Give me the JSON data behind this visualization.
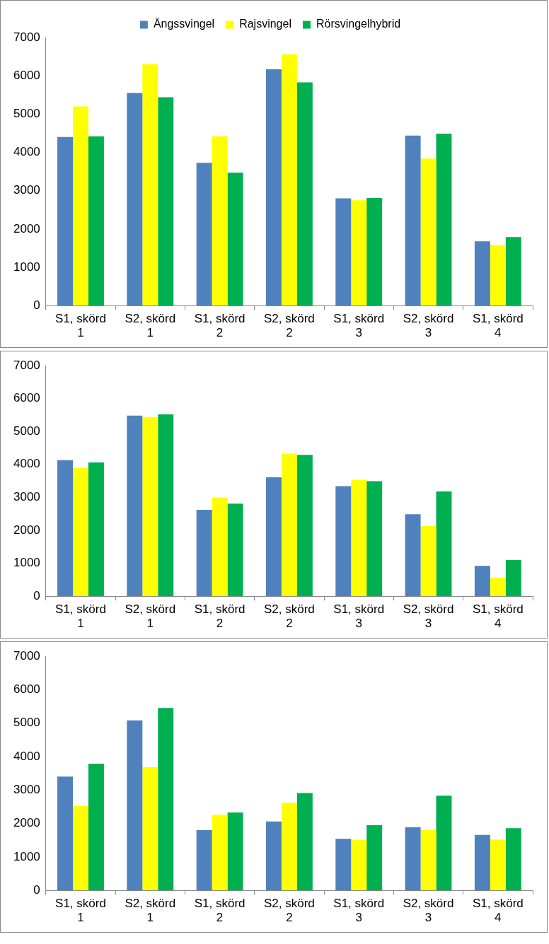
{
  "chart_data": [
    {
      "type": "bar",
      "legend": "top",
      "grid": false,
      "categories": [
        "S1, skörd 1",
        "S2, skörd 1",
        "S1, skörd 2",
        "S2, skörd 2",
        "S1, skörd 3",
        "S2, skörd 3",
        "S1, skörd 4"
      ],
      "ylim": [
        0,
        7000
      ],
      "yticks": [
        0,
        1000,
        2000,
        3000,
        4000,
        5000,
        6000,
        7000
      ],
      "series": [
        {
          "name": "Ängssvingel",
          "color": "#4f81bd",
          "values": [
            4400,
            5550,
            3730,
            6170,
            2800,
            4440,
            1680
          ]
        },
        {
          "name": "Rajsvingel",
          "color": "#ffff00",
          "values": [
            5200,
            6300,
            4420,
            6560,
            2750,
            3840,
            1580
          ]
        },
        {
          "name": "Rörsvingelhybrid",
          "color": "#00b050",
          "values": [
            4420,
            5440,
            3470,
            5830,
            2810,
            4490,
            1790
          ]
        }
      ]
    },
    {
      "type": "bar",
      "grid": false,
      "categories": [
        "S1, skörd 1",
        "S2, skörd 1",
        "S1, skörd 2",
        "S2, skörd 2",
        "S1, skörd 3",
        "S2, skörd 3",
        "S1, skörd 4"
      ],
      "ylim": [
        0,
        7000
      ],
      "yticks": [
        0,
        1000,
        2000,
        3000,
        4000,
        5000,
        6000,
        7000
      ],
      "series": [
        {
          "color": "#4f81bd",
          "values": [
            4130,
            5480,
            2620,
            3610,
            3340,
            2490,
            920
          ]
        },
        {
          "color": "#ffff00",
          "values": [
            3890,
            5440,
            3000,
            4330,
            3530,
            2130,
            560
          ]
        },
        {
          "color": "#00b050",
          "values": [
            4060,
            5520,
            2810,
            4290,
            3490,
            3180,
            1100
          ]
        }
      ]
    },
    {
      "type": "bar",
      "grid": false,
      "categories": [
        "S1, skörd 1",
        "S2, skörd 1",
        "S1, skörd 2",
        "S2, skörd 2",
        "S1, skörd 3",
        "S2, skörd 3",
        "S1, skörd 4"
      ],
      "ylim": [
        0,
        7000
      ],
      "yticks": [
        0,
        1000,
        2000,
        3000,
        4000,
        5000,
        6000,
        7000
      ],
      "series": [
        {
          "color": "#4f81bd",
          "values": [
            3400,
            5080,
            1800,
            2060,
            1540,
            1890,
            1660
          ]
        },
        {
          "color": "#ffff00",
          "values": [
            2520,
            3680,
            2260,
            2620,
            1510,
            1810,
            1520
          ]
        },
        {
          "color": "#00b050",
          "values": [
            3790,
            5450,
            2330,
            2910,
            1950,
            2830,
            1860
          ]
        }
      ]
    }
  ]
}
